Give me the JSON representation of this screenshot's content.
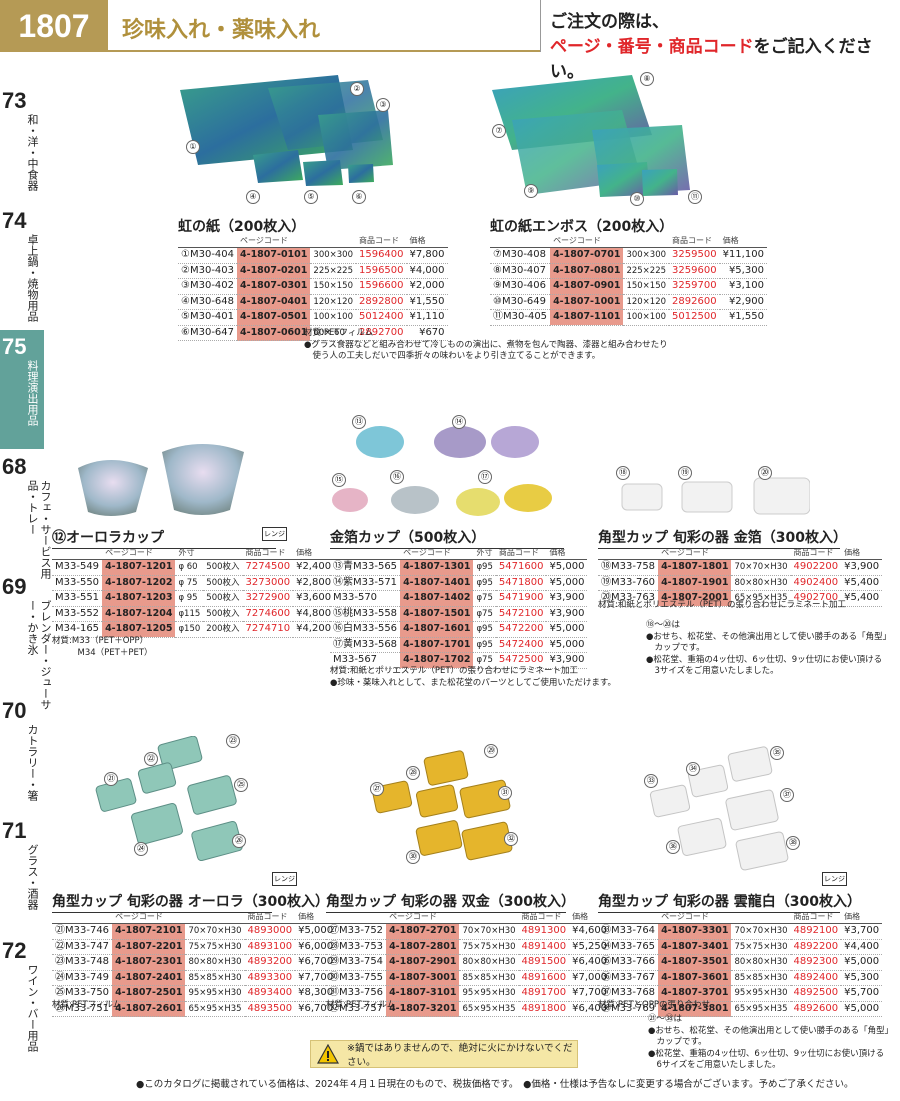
{
  "header": {
    "page_number": "1807",
    "category": "珍味入れ・薬味入れ",
    "notice_line1": "ご注文の際は、",
    "notice_red": "ページ・番号・商品コード",
    "notice_line2": "をご記入ください。"
  },
  "tabs": [
    {
      "num": "73",
      "label": "和・洋・中食器"
    },
    {
      "num": "74",
      "label": "卓上鍋・焼物用品"
    },
    {
      "num": "75",
      "label": "料理演出用品"
    },
    {
      "num": "68",
      "label": "カフェ・サービス用品・トレー"
    },
    {
      "num": "69",
      "label": "ブレンダー・ジューサー・かき氷"
    },
    {
      "num": "70",
      "label": "カトラリー・箸"
    },
    {
      "num": "71",
      "label": "グラス・酒器"
    },
    {
      "num": "72",
      "label": "ワイン・バー用品"
    }
  ],
  "colors": {
    "accent": "#b59a55",
    "tab_active": "#62a29a",
    "red": "#e0262a",
    "pagecode_bg": "#e89a8c"
  },
  "s1": {
    "title": "虹の紙（200枚入）",
    "h_page": "ページコード",
    "h_code": "商品コード",
    "h_price": "価格",
    "rows": [
      [
        "①M30-404",
        "4-1807-0101",
        "300×300",
        "1596400",
        "¥7,800"
      ],
      [
        "②M30-403",
        "4-1807-0201",
        "225×225",
        "1596500",
        "¥4,000"
      ],
      [
        "③M30-402",
        "4-1807-0301",
        "150×150",
        "1596600",
        "¥2,000"
      ],
      [
        "④M30-648",
        "4-1807-0401",
        "120×120",
        "2892800",
        "¥1,550"
      ],
      [
        "⑤M30-401",
        "4-1807-0501",
        "100×100",
        "5012400",
        "¥1,110"
      ],
      [
        "⑥M30-647",
        "4-1807-0601",
        "60× 60",
        "2892700",
        "¥670"
      ]
    ],
    "note": "材質:PETフィルム\n●グラス食器などと組み合わせて冷しものの演出に、煮物を包んで陶器、漆器と組み合わせたり\n　使う人の工夫しだいで四季折々の味わいをより引き立てることができます。"
  },
  "s2": {
    "title": "虹の紙エンボス（200枚入）",
    "h_page": "ページコード",
    "h_code": "商品コード",
    "h_price": "価格",
    "rows": [
      [
        "⑦M30-408",
        "4-1807-0701",
        "300×300",
        "3259500",
        "¥11,100"
      ],
      [
        "⑧M30-407",
        "4-1807-0801",
        "225×225",
        "3259600",
        "¥5,300"
      ],
      [
        "⑨M30-406",
        "4-1807-0901",
        "150×150",
        "3259700",
        "¥3,100"
      ],
      [
        "⑩M30-649",
        "4-1807-1001",
        "120×120",
        "2892600",
        "¥2,900"
      ],
      [
        "⑪M30-405",
        "4-1807-1101",
        "100×100",
        "5012500",
        "¥1,550"
      ]
    ]
  },
  "s3": {
    "title": "⑫オーロラカップ",
    "rangi": "レンジ",
    "h_page": "ページコード",
    "h_size": "外寸",
    "h_code": "商品コード",
    "h_price": "価格",
    "rows": [
      [
        "M33-549",
        "4-1807-1201",
        "φ 60",
        "500枚入",
        "7274500",
        "¥2,400"
      ],
      [
        "M33-550",
        "4-1807-1202",
        "φ 75",
        "500枚入",
        "3273000",
        "¥2,800"
      ],
      [
        "M33-551",
        "4-1807-1203",
        "φ 95",
        "500枚入",
        "3272900",
        "¥3,600"
      ],
      [
        "M33-552",
        "4-1807-1204",
        "φ115",
        "500枚入",
        "7274600",
        "¥4,800"
      ],
      [
        "M34-165",
        "4-1807-1205",
        "φ150",
        "200枚入",
        "7274710",
        "¥4,200"
      ]
    ],
    "note": "材質:M33（PET＋OPP）\n　　　M34（PET＋PET）"
  },
  "s4": {
    "title": "金箔カップ（500枚入）",
    "h_page": "ページコード",
    "h_size": "外寸",
    "h_code": "商品コード",
    "h_price": "価格",
    "rows": [
      [
        "⑬青M33-565",
        "4-1807-1301",
        "φ95",
        "5471600",
        "¥5,000"
      ],
      [
        "⑭紫M33-571",
        "4-1807-1401",
        "φ95",
        "5471800",
        "¥5,000"
      ],
      [
        "M33-570",
        "4-1807-1402",
        "φ75",
        "5471900",
        "¥3,900"
      ],
      [
        "⑮桃M33-558",
        "4-1807-1501",
        "φ75",
        "5472100",
        "¥3,900"
      ],
      [
        "⑯白M33-556",
        "4-1807-1601",
        "φ95",
        "5472200",
        "¥5,000"
      ],
      [
        "⑰黄M33-568",
        "4-1807-1701",
        "φ95",
        "5472400",
        "¥5,000"
      ],
      [
        "M33-567",
        "4-1807-1702",
        "φ75",
        "5472500",
        "¥3,900"
      ]
    ],
    "note": "材質:和紙とポリエステル（PET）の張り合わせにラミネート加工\n●珍味・薬味入れとして、また松花堂のパーツとしてご使用いただけます。"
  },
  "s5": {
    "title": "角型カップ 旬彩の器 金箔（300枚入）",
    "h_page": "ページコード",
    "h_code": "商品コード",
    "h_price": "価格",
    "rows": [
      [
        "⑱M33-758",
        "4-1807-1801",
        "70×70×H30",
        "4902200",
        "¥3,900"
      ],
      [
        "⑲M33-760",
        "4-1807-1901",
        "80×80×H30",
        "4902400",
        "¥5,400"
      ],
      [
        "⑳M33-763",
        "4-1807-2001",
        "65×95×H35",
        "4902700",
        "¥5,400"
      ]
    ],
    "note": "材質:和紙とポリエステル（PET）の張り合わせにラミネート加工",
    "note2": "⑱〜⑳は\n●おせち、松花堂、その他演出用として使い勝手のある「角型」\n　カップです。\n●松花堂、重箱の4ッ仕切、6ッ仕切、9ッ仕切にお使い頂ける\n　3サイズをご用意いたしました。"
  },
  "s6": {
    "title": "角型カップ 旬彩の器 オーロラ（300枚入）",
    "rangi": "レンジ",
    "h_page": "ページコード",
    "h_code": "商品コード",
    "h_price": "価格",
    "rows": [
      [
        "㉑M33-746",
        "4-1807-2101",
        "70×70×H30",
        "4893000",
        "¥5,000"
      ],
      [
        "㉒M33-747",
        "4-1807-2201",
        "75×75×H30",
        "4893100",
        "¥6,000"
      ],
      [
        "㉓M33-748",
        "4-1807-2301",
        "80×80×H30",
        "4893200",
        "¥6,700"
      ],
      [
        "㉔M33-749",
        "4-1807-2401",
        "85×85×H30",
        "4893300",
        "¥7,700"
      ],
      [
        "㉕M33-750",
        "4-1807-2501",
        "95×95×H30",
        "4893400",
        "¥8,300"
      ],
      [
        "㉖M33-751",
        "4-1807-2601",
        "65×95×H35",
        "4893500",
        "¥6,700"
      ]
    ],
    "note": "材質:PETフィルム"
  },
  "s7": {
    "title": "角型カップ 旬彩の器 双金（300枚入）",
    "h_page": "ページコード",
    "h_code": "商品コード",
    "h_price": "価格",
    "rows": [
      [
        "㉗M33-752",
        "4-1807-2701",
        "70×70×H30",
        "4891300",
        "¥4,600"
      ],
      [
        "㉘M33-753",
        "4-1807-2801",
        "75×75×H30",
        "4891400",
        "¥5,250"
      ],
      [
        "㉙M33-754",
        "4-1807-2901",
        "80×80×H30",
        "4891500",
        "¥6,400"
      ],
      [
        "㉚M33-755",
        "4-1807-3001",
        "85×85×H30",
        "4891600",
        "¥7,000"
      ],
      [
        "㉛M33-756",
        "4-1807-3101",
        "95×95×H30",
        "4891700",
        "¥7,700"
      ],
      [
        "㉜M33-757",
        "4-1807-3201",
        "65×95×H35",
        "4891800",
        "¥6,400"
      ]
    ],
    "note": "材質:PETフィルム"
  },
  "s8": {
    "title": "角型カップ 旬彩の器 雲龍白（300枚入）",
    "rangi": "レンジ",
    "h_page": "ページコード",
    "h_code": "商品コード",
    "h_price": "価格",
    "rows": [
      [
        "㉝M33-764",
        "4-1807-3301",
        "70×70×H30",
        "4892100",
        "¥3,700"
      ],
      [
        "㉞M33-765",
        "4-1807-3401",
        "75×75×H30",
        "4892200",
        "¥4,400"
      ],
      [
        "㉟M33-766",
        "4-1807-3501",
        "80×80×H30",
        "4892300",
        "¥5,000"
      ],
      [
        "㊱M33-767",
        "4-1807-3601",
        "85×85×H30",
        "4892400",
        "¥5,300"
      ],
      [
        "㊲M33-768",
        "4-1807-3701",
        "95×95×H30",
        "4892500",
        "¥5,700"
      ],
      [
        "㊳M33-769",
        "4-1807-3801",
        "65×95×H35",
        "4892600",
        "¥5,000"
      ]
    ],
    "note": "材質:PETとOPPの張り合わせ",
    "note2": "㉑〜㊳は\n●おせち、松花堂、その他演出用として使い勝手のある「角型」\n　カップです。\n●松花堂、重箱の4ッ仕切、6ッ仕切、9ッ仕切にお使い頂ける\n　6サイズをご用意いたしました。"
  },
  "warning": "※鍋ではありませんので、絶対に火にかけないでください。",
  "footer": "●このカタログに掲載されている価格は、2024年４月１日現在のもので、税抜価格です。　●価格・仕様は予告なしに変更する場合がございます。予めご了承ください。",
  "labels": {
    "n1": "①",
    "n2": "②",
    "n3": "③",
    "n4": "④",
    "n5": "⑤",
    "n6": "⑥",
    "n7": "⑦",
    "n8": "⑧",
    "n9": "⑨",
    "n10": "⑩",
    "n11": "⑪",
    "n13": "⑬",
    "n14": "⑭",
    "n15": "⑮",
    "n16": "⑯",
    "n17": "⑰",
    "n18": "⑱",
    "n19": "⑲",
    "n20": "⑳",
    "n21": "㉑",
    "n22": "㉒",
    "n23": "㉓",
    "n24": "㉔",
    "n25": "㉕",
    "n26": "㉖",
    "n27": "㉗",
    "n28": "㉘",
    "n29": "㉙",
    "n30": "㉚",
    "n31": "㉛",
    "n32": "㉜",
    "n33": "㉝",
    "n34": "㉞",
    "n35": "㉟",
    "n36": "㊱",
    "n37": "㊲",
    "n38": "㊳"
  }
}
